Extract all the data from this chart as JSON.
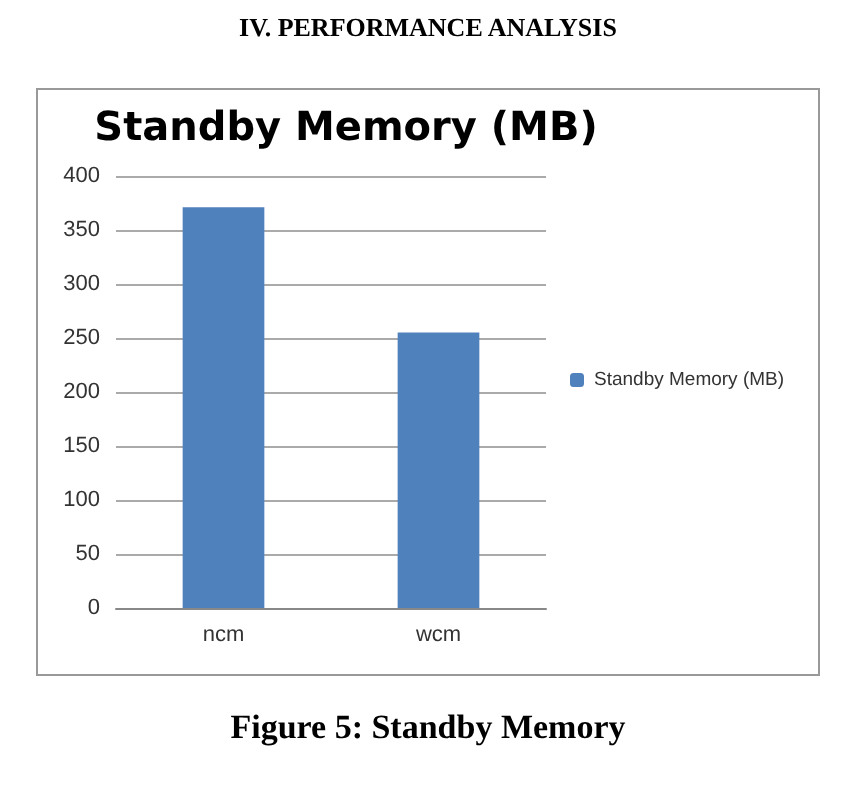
{
  "chart_data": {
    "type": "bar",
    "title": "Standby Memory (MB)",
    "categories": [
      "ncm",
      "wcm"
    ],
    "series": [
      {
        "name": "Standby Memory (MB)",
        "color": "#4f81bd",
        "values": [
          371,
          255
        ]
      }
    ],
    "ylim": [
      0,
      400
    ],
    "yticks": [
      0,
      50,
      100,
      150,
      200,
      250,
      300,
      350,
      400
    ],
    "grid": "y",
    "legend": "right",
    "annotations": [
      "IV.   PERFORMANCE ANALYSIS",
      "Figure 5: Standby Memory"
    ]
  }
}
